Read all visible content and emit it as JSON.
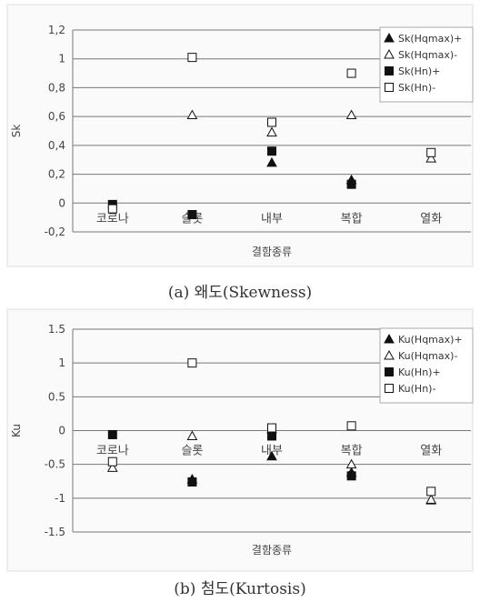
{
  "captions": {
    "a": "(a) 왜도(Skewness)",
    "b": "(b) 첨도(Kurtosis)"
  },
  "chart_data": [
    {
      "type": "scatter",
      "title": "",
      "ylabel": "Sk",
      "xlabel": "결함종류",
      "ylim": [
        -0.2,
        1.2
      ],
      "yticks": [
        "1,2",
        "1",
        "0,8",
        "0,6",
        "0,4",
        "0,2",
        "0",
        "-0,2"
      ],
      "categories": [
        "코로나",
        "슬롯",
        "내부",
        "복합",
        "열화"
      ],
      "grid": true,
      "legend": "top-right",
      "series": [
        {
          "name": "Sk(Hqmax)+",
          "marker": "triangle-filled",
          "values": [
            null,
            null,
            0.28,
            0.16,
            null
          ]
        },
        {
          "name": "Sk(Hqmax)-",
          "marker": "triangle-open",
          "values": [
            null,
            0.61,
            0.49,
            0.61,
            0.31
          ]
        },
        {
          "name": "Sk(Hn)+",
          "marker": "square-filled",
          "values": [
            -0.01,
            -0.08,
            0.36,
            0.13,
            null
          ]
        },
        {
          "name": "Sk(Hn)-",
          "marker": "square-open",
          "values": [
            -0.04,
            1.01,
            0.56,
            0.9,
            0.35
          ]
        }
      ]
    },
    {
      "type": "scatter",
      "title": "",
      "ylabel": "Ku",
      "xlabel": "결함종류",
      "ylim": [
        -1.5,
        1.5
      ],
      "yticks": [
        "1.5",
        "1",
        "0.5",
        "0",
        "-0.5",
        "-1",
        "-1.5"
      ],
      "categories": [
        "코로나",
        "슬롯",
        "내부",
        "복합",
        "열화"
      ],
      "grid": true,
      "legend": "top-right",
      "series": [
        {
          "name": "Ku(Hqmax)+",
          "marker": "triangle-filled",
          "values": [
            null,
            -0.72,
            -0.38,
            -0.62,
            -1.03
          ]
        },
        {
          "name": "Ku(Hqmax)-",
          "marker": "triangle-open",
          "values": [
            -0.55,
            -0.08,
            0.02,
            -0.5,
            -1.02
          ]
        },
        {
          "name": "Ku(Hn)+",
          "marker": "square-filled",
          "values": [
            -0.06,
            -0.76,
            -0.08,
            -0.67,
            null
          ]
        },
        {
          "name": "Ku(Hn)-",
          "marker": "square-open",
          "values": [
            -0.46,
            1.0,
            0.04,
            0.07,
            -0.9
          ]
        }
      ]
    }
  ]
}
